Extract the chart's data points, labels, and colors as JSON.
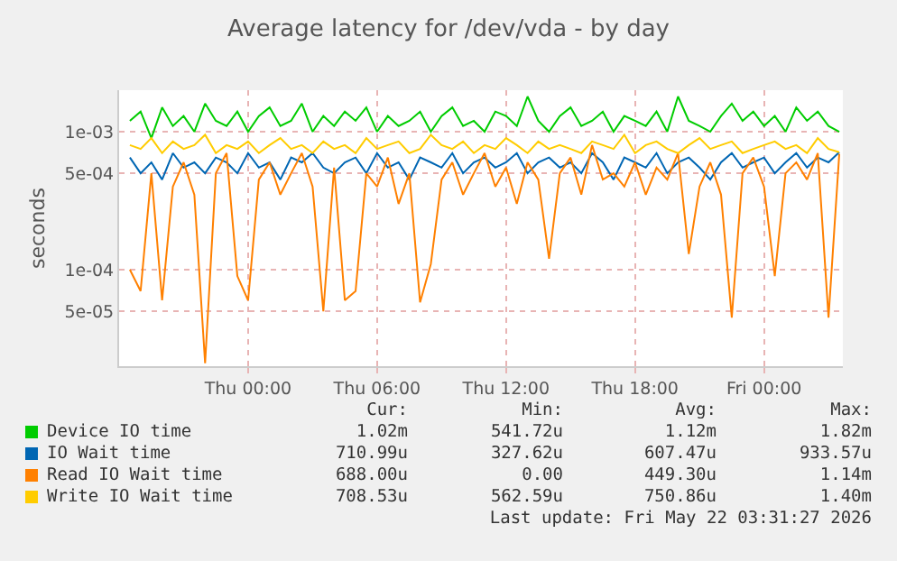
{
  "chart_data": {
    "type": "line",
    "title": "Average latency for /dev/vda - by day",
    "ylabel": "seconds",
    "x": [
      "2026-05-20T18:30",
      "2026-05-20T19:00",
      "2026-05-20T19:30",
      "2026-05-20T20:00",
      "2026-05-20T20:30",
      "2026-05-20T21:00",
      "2026-05-20T21:30",
      "2026-05-20T22:00",
      "2026-05-20T22:30",
      "2026-05-20T23:00",
      "2026-05-20T23:30",
      "2026-05-21T00:00",
      "2026-05-21T00:30",
      "2026-05-21T01:00",
      "2026-05-21T01:30",
      "2026-05-21T02:00",
      "2026-05-21T02:30",
      "2026-05-21T03:00",
      "2026-05-21T03:30",
      "2026-05-21T04:00",
      "2026-05-21T04:30",
      "2026-05-21T05:00",
      "2026-05-21T05:30",
      "2026-05-21T06:00",
      "2026-05-21T06:30",
      "2026-05-21T07:00",
      "2026-05-21T07:30",
      "2026-05-21T08:00",
      "2026-05-21T08:30",
      "2026-05-21T09:00",
      "2026-05-21T09:30",
      "2026-05-21T10:00",
      "2026-05-21T10:30",
      "2026-05-21T11:00",
      "2026-05-21T11:30",
      "2026-05-21T12:00",
      "2026-05-21T12:30",
      "2026-05-21T13:00",
      "2026-05-21T13:30",
      "2026-05-21T14:00",
      "2026-05-21T14:30",
      "2026-05-21T15:00",
      "2026-05-21T15:30",
      "2026-05-21T16:00",
      "2026-05-21T16:30",
      "2026-05-21T17:00",
      "2026-05-21T17:30",
      "2026-05-21T18:00",
      "2026-05-21T18:30",
      "2026-05-21T19:00",
      "2026-05-21T19:30",
      "2026-05-21T20:00",
      "2026-05-21T20:30",
      "2026-05-21T21:00",
      "2026-05-21T21:30",
      "2026-05-21T22:00",
      "2026-05-21T22:30",
      "2026-05-21T23:00",
      "2026-05-21T23:30",
      "2026-05-22T00:00",
      "2026-05-22T00:30",
      "2026-05-22T01:00",
      "2026-05-22T01:30",
      "2026-05-22T02:00",
      "2026-05-22T02:30",
      "2026-05-22T03:00",
      "2026-05-22T03:30"
    ],
    "series": [
      {
        "name": "Device IO time",
        "color": "#00cc00",
        "values": [
          0.0012,
          0.0014,
          0.0009,
          0.0015,
          0.0011,
          0.0013,
          0.001,
          0.0016,
          0.0012,
          0.0011,
          0.0014,
          0.001,
          0.0013,
          0.0015,
          0.0011,
          0.0012,
          0.0016,
          0.001,
          0.0013,
          0.0011,
          0.0014,
          0.0012,
          0.0015,
          0.001,
          0.0013,
          0.0011,
          0.0012,
          0.0014,
          0.001,
          0.0013,
          0.0015,
          0.0011,
          0.0012,
          0.001,
          0.0014,
          0.0013,
          0.0011,
          0.0018,
          0.0012,
          0.001,
          0.0013,
          0.0015,
          0.0011,
          0.0012,
          0.0014,
          0.001,
          0.0013,
          0.0012,
          0.0011,
          0.0014,
          0.001,
          0.0018,
          0.0012,
          0.0011,
          0.001,
          0.0013,
          0.0016,
          0.0012,
          0.0014,
          0.0011,
          0.0013,
          0.001,
          0.0015,
          0.0012,
          0.0014,
          0.0011,
          0.001
        ]
      },
      {
        "name": "IO Wait time",
        "color": "#0066b3",
        "values": [
          0.00065,
          0.0005,
          0.0006,
          0.00045,
          0.0007,
          0.00055,
          0.0006,
          0.0005,
          0.00065,
          0.0006,
          0.0005,
          0.0007,
          0.00055,
          0.0006,
          0.00045,
          0.00065,
          0.0006,
          0.0007,
          0.00055,
          0.0005,
          0.0006,
          0.00065,
          0.0005,
          0.0007,
          0.00055,
          0.0006,
          0.00045,
          0.00065,
          0.0006,
          0.00055,
          0.0007,
          0.0005,
          0.0006,
          0.00065,
          0.00055,
          0.0006,
          0.0007,
          0.0005,
          0.0006,
          0.00065,
          0.00055,
          0.0006,
          0.0005,
          0.0007,
          0.0006,
          0.00045,
          0.00065,
          0.0006,
          0.00055,
          0.0007,
          0.0005,
          0.0006,
          0.00065,
          0.00055,
          0.00045,
          0.0006,
          0.0007,
          0.00055,
          0.0006,
          0.00065,
          0.0005,
          0.0006,
          0.0007,
          0.00055,
          0.00065,
          0.0006,
          0.00071
        ]
      },
      {
        "name": "Read IO Wait time",
        "color": "#ff8000",
        "values": [
          0.0001,
          7e-05,
          0.0005,
          6e-05,
          0.0004,
          0.0006,
          0.00035,
          2.1e-05,
          0.0005,
          0.0007,
          9e-05,
          6e-05,
          0.00045,
          0.0006,
          0.00035,
          0.0005,
          0.0007,
          0.0004,
          5e-05,
          0.00055,
          6e-05,
          7e-05,
          0.0005,
          0.0004,
          0.00065,
          0.0003,
          0.0005,
          5.8e-05,
          0.00011,
          0.00045,
          0.0006,
          0.00035,
          0.0005,
          0.0007,
          0.0004,
          0.00055,
          0.0003,
          0.0006,
          0.00045,
          0.00012,
          0.0005,
          0.00065,
          0.00035,
          0.0008,
          0.00045,
          0.0005,
          0.0004,
          0.0006,
          0.00035,
          0.00055,
          0.00045,
          0.0007,
          0.00013,
          0.0004,
          0.0006,
          0.00035,
          4.5e-05,
          0.0005,
          0.00065,
          0.0004,
          9e-05,
          0.0005,
          0.0006,
          0.00045,
          0.0007,
          4.5e-05,
          0.00069
        ]
      },
      {
        "name": "Write IO Wait time",
        "color": "#ffcc00",
        "values": [
          0.0008,
          0.00075,
          0.0009,
          0.0007,
          0.00085,
          0.00075,
          0.0008,
          0.00095,
          0.0007,
          0.0008,
          0.00075,
          0.00085,
          0.0007,
          0.0008,
          0.0009,
          0.00075,
          0.0008,
          0.0007,
          0.00085,
          0.00075,
          0.0008,
          0.0007,
          0.0009,
          0.00075,
          0.0008,
          0.00085,
          0.0007,
          0.00075,
          0.00095,
          0.0008,
          0.00075,
          0.00085,
          0.0007,
          0.0008,
          0.00075,
          0.0009,
          0.0008,
          0.0007,
          0.00085,
          0.00075,
          0.0008,
          0.00075,
          0.0007,
          0.00085,
          0.0008,
          0.00075,
          0.00095,
          0.0007,
          0.0008,
          0.00085,
          0.00075,
          0.0007,
          0.0008,
          0.0009,
          0.00075,
          0.0008,
          0.00085,
          0.0007,
          0.00075,
          0.0008,
          0.00085,
          0.00075,
          0.0008,
          0.0007,
          0.0009,
          0.00075,
          0.00071
        ]
      }
    ],
    "log": "y",
    "xlim": [
      "2026-05-20T18:00",
      "2026-05-22T03:40"
    ],
    "xticks": [
      {
        "value": "2026-05-21T00:00",
        "label": "Thu 00:00"
      },
      {
        "value": "2026-05-21T06:00",
        "label": "Thu 06:00"
      },
      {
        "value": "2026-05-21T12:00",
        "label": "Thu 12:00"
      },
      {
        "value": "2026-05-21T18:00",
        "label": "Thu 18:00"
      },
      {
        "value": "2026-05-22T00:00",
        "label": "Fri 00:00"
      }
    ],
    "ylim": [
      2e-05,
      0.002
    ],
    "yticks": [
      {
        "value": 5e-05,
        "label": "5e-05"
      },
      {
        "value": 0.0001,
        "label": "1e-04"
      },
      {
        "value": 0.0005,
        "label": "5e-04"
      },
      {
        "value": 0.001,
        "label": "1e-03"
      }
    ],
    "grid": true,
    "legend": "bottom",
    "line_style": "solid",
    "marker": "none",
    "annotations": [
      "Cur:",
      "Min:",
      "Avg:",
      "Max:",
      "1.02m",
      "541.72u",
      "1.12m",
      "1.82m",
      "710.99u",
      "327.62u",
      "607.47u",
      "933.57u",
      "688.00u",
      "0.00",
      "449.30u",
      "1.14m",
      "708.53u",
      "562.59u",
      "750.86u",
      "1.40m",
      "Last update: Fri May 22 03:31:27 2026"
    ]
  }
}
